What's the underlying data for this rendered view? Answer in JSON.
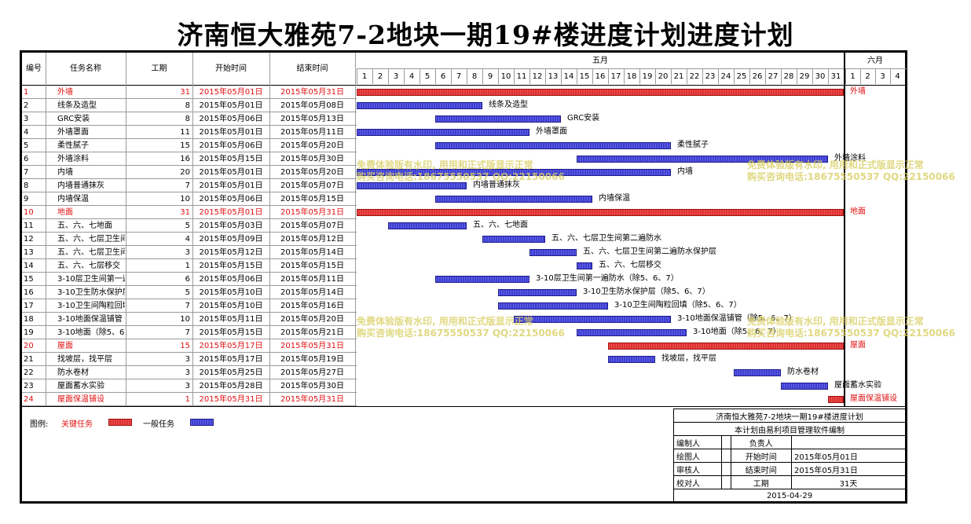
{
  "title": "济南恒大雅苑7-2地块一期19#楼进度计划进度计划",
  "columns": {
    "id": "编号",
    "name": "任务名称",
    "duration": "工期",
    "start": "开始时间",
    "end": "结束时间"
  },
  "months": [
    "五月",
    "六月"
  ],
  "days_may": [
    "1",
    "2",
    "3",
    "4",
    "5",
    "6",
    "7",
    "8",
    "9",
    "10",
    "11",
    "12",
    "13",
    "14",
    "15",
    "16",
    "17",
    "18",
    "19",
    "20",
    "21",
    "22",
    "23",
    "24",
    "25",
    "26",
    "27",
    "28",
    "29",
    "30",
    "31"
  ],
  "days_june": [
    "1",
    "2",
    "3",
    "4"
  ],
  "colors": {
    "critical": "#e03030",
    "normal": "#3f3fd6",
    "critical_text": "#e01010"
  },
  "tasks": [
    {
      "id": "1",
      "name": "外墙",
      "dur": "31",
      "start": "2015年05月01日",
      "end": "2015年05月31日",
      "s": 1,
      "e": 31,
      "critical": true,
      "label": "外墙"
    },
    {
      "id": "2",
      "name": "线条及造型",
      "dur": "8",
      "start": "2015年05月01日",
      "end": "2015年05月08日",
      "s": 1,
      "e": 8,
      "critical": false,
      "label": "线条及造型"
    },
    {
      "id": "3",
      "name": "GRC安装",
      "dur": "8",
      "start": "2015年05月06日",
      "end": "2015年05月13日",
      "s": 6,
      "e": 13,
      "critical": false,
      "label": "GRC安装"
    },
    {
      "id": "4",
      "name": "外墙罩面",
      "dur": "11",
      "start": "2015年05月01日",
      "end": "2015年05月11日",
      "s": 1,
      "e": 11,
      "critical": false,
      "label": "外墙罩面"
    },
    {
      "id": "5",
      "name": "柔性腻子",
      "dur": "15",
      "start": "2015年05月06日",
      "end": "2015年05月20日",
      "s": 6,
      "e": 20,
      "critical": false,
      "label": "柔性腻子"
    },
    {
      "id": "6",
      "name": "外墙涂料",
      "dur": "16",
      "start": "2015年05月15日",
      "end": "2015年05月30日",
      "s": 15,
      "e": 30,
      "critical": false,
      "label": "外墙涂料"
    },
    {
      "id": "7",
      "name": "内墙",
      "dur": "20",
      "start": "2015年05月01日",
      "end": "2015年05月20日",
      "s": 1,
      "e": 20,
      "critical": false,
      "label": "内墙"
    },
    {
      "id": "8",
      "name": "内墙普通抹灰",
      "dur": "7",
      "start": "2015年05月01日",
      "end": "2015年05月07日",
      "s": 1,
      "e": 7,
      "critical": false,
      "label": "内墙普通抹灰"
    },
    {
      "id": "9",
      "name": "内墙保温",
      "dur": "10",
      "start": "2015年05月06日",
      "end": "2015年05月15日",
      "s": 6,
      "e": 15,
      "critical": false,
      "label": "内墙保温"
    },
    {
      "id": "10",
      "name": "地面",
      "dur": "31",
      "start": "2015年05月01日",
      "end": "2015年05月31日",
      "s": 1,
      "e": 31,
      "critical": true,
      "label": "地面"
    },
    {
      "id": "11",
      "name": "五、六、七地面",
      "dur": "5",
      "start": "2015年05月03日",
      "end": "2015年05月07日",
      "s": 3,
      "e": 7,
      "critical": false,
      "label": "五、六、七地面"
    },
    {
      "id": "12",
      "name": "五、六、七层卫生间第二遍防水",
      "dur": "4",
      "start": "2015年05月09日",
      "end": "2015年05月12日",
      "s": 9,
      "e": 12,
      "critical": false,
      "label": "五、六、七层卫生间第二遍防水"
    },
    {
      "id": "13",
      "name": "五、六、七层卫生间第二遍防水保护层",
      "dur": "3",
      "start": "2015年05月12日",
      "end": "2015年05月14日",
      "s": 12,
      "e": 14,
      "critical": false,
      "label": "五、六、七层卫生间第二遍防水保护层"
    },
    {
      "id": "14",
      "name": "五、六、七层移交",
      "dur": "1",
      "start": "2015年05月15日",
      "end": "2015年05月15日",
      "s": 15,
      "e": 15,
      "critical": false,
      "label": "五、六、七层移交"
    },
    {
      "id": "15",
      "name": "3-10层卫生间第一遍防水（除5、6、7）",
      "dur": "6",
      "start": "2015年05月06日",
      "end": "2015年05月11日",
      "s": 6,
      "e": 11,
      "critical": false,
      "label": "3-10层卫生间第一遍防水（除5、6、7）"
    },
    {
      "id": "16",
      "name": "3-10卫生防水保护层（除5、6、7）",
      "dur": "5",
      "start": "2015年05月10日",
      "end": "2015年05月14日",
      "s": 10,
      "e": 14,
      "critical": false,
      "label": "3-10卫生防水保护层（除5、6、7）"
    },
    {
      "id": "17",
      "name": "3-10卫生间陶粒回填（除5、6、7）",
      "dur": "7",
      "start": "2015年05月10日",
      "end": "2015年05月16日",
      "s": 10,
      "e": 16,
      "critical": false,
      "label": "3-10卫生间陶粒回填（除5、6、7）"
    },
    {
      "id": "18",
      "name": "3-10地面保温铺管（除5、6、7）",
      "dur": "10",
      "start": "2015年05月11日",
      "end": "2015年05月20日",
      "s": 11,
      "e": 20,
      "critical": false,
      "label": "3-10地面保温铺管（除5、6、7）"
    },
    {
      "id": "19",
      "name": "3-10地面（除5、6、7）",
      "dur": "7",
      "start": "2015年05月15日",
      "end": "2015年05月21日",
      "s": 15,
      "e": 21,
      "critical": false,
      "label": "3-10地面（除5、6、7）"
    },
    {
      "id": "20",
      "name": "屋面",
      "dur": "15",
      "start": "2015年05月17日",
      "end": "2015年05月31日",
      "s": 17,
      "e": 31,
      "critical": true,
      "label": "屋面"
    },
    {
      "id": "21",
      "name": "找坡层，找平层",
      "dur": "3",
      "start": "2015年05月17日",
      "end": "2015年05月19日",
      "s": 17,
      "e": 19,
      "critical": false,
      "label": "找坡层，找平层"
    },
    {
      "id": "22",
      "name": "防水卷材",
      "dur": "3",
      "start": "2015年05月25日",
      "end": "2015年05月27日",
      "s": 25,
      "e": 27,
      "critical": false,
      "label": "防水卷材"
    },
    {
      "id": "23",
      "name": "屋面蓄水实验",
      "dur": "3",
      "start": "2015年05月28日",
      "end": "2015年05月30日",
      "s": 28,
      "e": 30,
      "critical": false,
      "label": "屋面蓄水实验"
    },
    {
      "id": "24",
      "name": "屋面保温铺设",
      "dur": "1",
      "start": "2015年05月31日",
      "end": "2015年05月31日",
      "s": 31,
      "e": 31,
      "critical": true,
      "label": "屋面保温铺设"
    }
  ],
  "legend": {
    "label": "图例:",
    "critical": "关键任务",
    "normal": "一般任务"
  },
  "watermark": {
    "line1": "免费体验版有水印, 用用和正式版显示正常",
    "line2": "购买咨询电话:18675550537 QQ:22150066"
  },
  "info": {
    "title": "济南恒大雅苑7-2地块一期19#楼进度计划",
    "subtitle": "本计划由易利项目管理软件编制",
    "editor_label": "编制人",
    "owner_label": "负责人",
    "drawer_label": "绘图人",
    "start_label": "开始时间",
    "start_value": "2015年05月01日",
    "reviewer_label": "审核人",
    "end_label": "结束时间",
    "end_value": "2015年05月31日",
    "checker_label": "校对人",
    "duration_label": "工期",
    "duration_value": "31天",
    "date": "2015-04-29"
  }
}
